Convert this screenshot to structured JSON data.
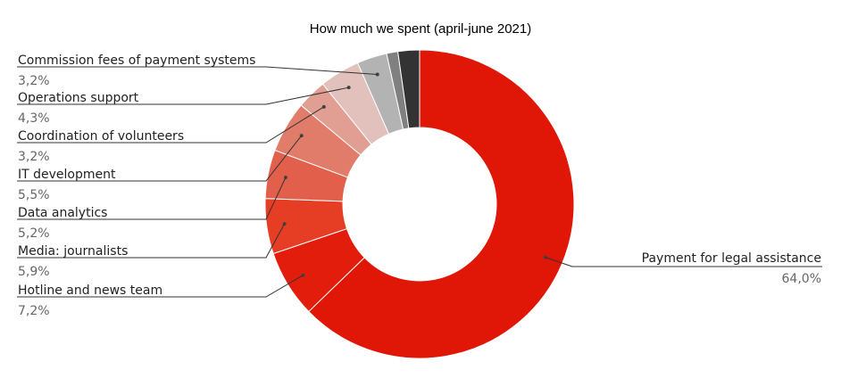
{
  "chart_data": {
    "type": "pie",
    "variant": "donut",
    "title": "How much we spent (april-june 2021)",
    "slices": [
      {
        "label": "Payment for legal assistance",
        "value_label": "64,0%",
        "value": 64.0,
        "color": "#e01606"
      },
      {
        "label": "Hotline and news team",
        "value_label": "7,2%",
        "value": 7.2,
        "color": "#e31d0c"
      },
      {
        "label": "Media: journalists",
        "value_label": "5,9%",
        "value": 5.9,
        "color": "#e53e25"
      },
      {
        "label": "Data analytics",
        "value_label": "5,2%",
        "value": 5.2,
        "color": "#e25f4c"
      },
      {
        "label": "IT development",
        "value_label": "5,5%",
        "value": 5.5,
        "color": "#e07c69"
      },
      {
        "label": "Coordination of volunteers",
        "value_label": "3,2%",
        "value": 3.2,
        "color": "#e19f93"
      },
      {
        "label": "Operations support",
        "value_label": "4,3%",
        "value": 4.3,
        "color": "#e2c0bb"
      },
      {
        "label": "Commission fees of payment systems",
        "value_label": "3,2%",
        "value": 3.2,
        "color": "#b3b3b3"
      },
      {
        "label": "",
        "value_label": "",
        "value": 1.2,
        "color": "#808080"
      },
      {
        "label": "",
        "value_label": "",
        "value": 2.3,
        "color": "#333333"
      }
    ]
  }
}
